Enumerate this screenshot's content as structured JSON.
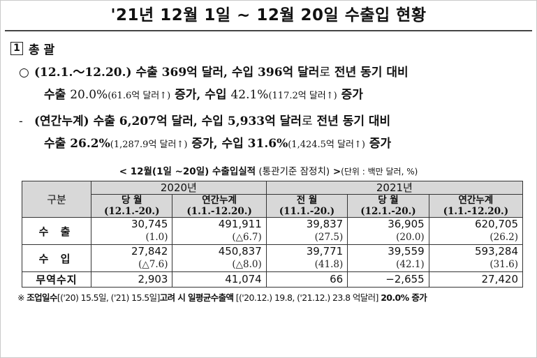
{
  "title": "'21년 12월 1일 ~ 12월 20일 수출입 현황",
  "section": {
    "num": "1",
    "label": "총 괄"
  },
  "bullet1": {
    "mark": "○",
    "line1_bold": "(12.1.～12.20.) 수출 369억 달러, 수입 396억 달러",
    "line1_mid": "로",
    "line1_tail": " 전년 동기 대비",
    "line2_a": "수출 ",
    "line2_b": "20.0%",
    "line2_c": "(61.6억 달러↑)",
    "line2_d": " 증가, 수입 ",
    "line2_e": "42.1%",
    "line2_f": "(117.2억 달러↑)",
    "line2_g": " 증가"
  },
  "bullet2": {
    "mark": "-",
    "line1_bold": "(연간누계) 수출 6,207억 달러, 수입 5,933억 달러",
    "line1_mid": "로",
    "line1_tail": " 전년 동기 대비",
    "line2_a": "수출 26.2%",
    "line2_c": "(1,287.9억 달러↑)",
    "line2_d": " 증가, 수입 31.6%",
    "line2_f": "(1,424.5억 달러↑)",
    "line2_g": " 증가"
  },
  "caption": {
    "main": "< 12월(1일 ~20일) 수출입실적",
    "basis": " (통관기준 잠정치)",
    "close": " >",
    "unit": "(단위 : 백만 달러, %)"
  },
  "table": {
    "corner": "구분",
    "group_2020": "2020년",
    "group_2021": "2021년",
    "cols": [
      {
        "name": "당 월",
        "period": "(12.1.-20.)"
      },
      {
        "name": "연간누계",
        "period": "(1.1.-12.20.)"
      },
      {
        "name": "전 월",
        "period": "(11.1.-20.)"
      },
      {
        "name": "당 월",
        "period": "(12.1.-20.)"
      },
      {
        "name": "연간누계",
        "period": "(1.1.-12.20.)"
      }
    ],
    "rows": [
      {
        "label": "수 출",
        "values": [
          "30,745",
          "491,911",
          "39,837",
          "36,905",
          "620,705"
        ],
        "pct": [
          "(1.0)",
          "(△6.7)",
          "(27.5)",
          "(20.0)",
          "(26.2)"
        ]
      },
      {
        "label": "수 입",
        "values": [
          "27,842",
          "450,837",
          "39,771",
          "39,559",
          "593,284"
        ],
        "pct": [
          "(△7.6)",
          "(△8.0)",
          "(41.8)",
          "(42.1)",
          "(31.6)"
        ]
      },
      {
        "label": "무역수지",
        "values": [
          "2,903",
          "41,074",
          "66",
          "−2,655",
          "27,420"
        ]
      }
    ]
  },
  "note": {
    "mark": "※ ",
    "a": "조업일수",
    "b": "[('20) 15.5일, ('21) 15.5일]",
    "c": "고려 시 일평균수출액",
    "d": " [('20.12.) 19.8, ('21.12.) 23.8 억달러] ",
    "e": "20.0% 증가"
  }
}
